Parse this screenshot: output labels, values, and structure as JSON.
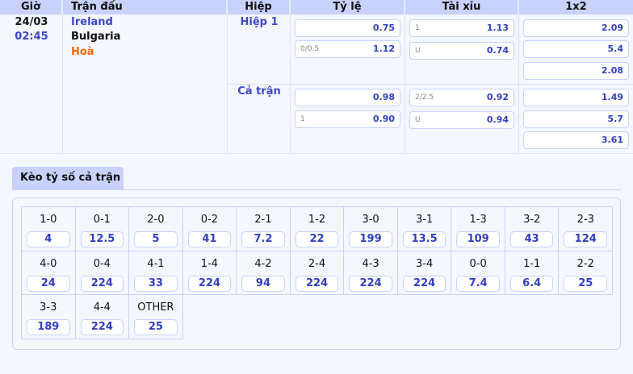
{
  "header": {
    "gio": "Giờ",
    "tran_dau": "Trận đấu",
    "hiep": "Hiệp",
    "ty_le": "Tỷ lệ",
    "tai_xiu": "Tài xỉu",
    "x12": "1x2"
  },
  "match": {
    "date": "24/03",
    "time": "02:45",
    "home": "Ireland",
    "away": "Bulgaria",
    "draw": "Hoà"
  },
  "periods": [
    {
      "name": "Hiệp 1",
      "ty_le": [
        {
          "line": "",
          "odds": "0.75"
        },
        {
          "line": "0/0.5",
          "odds": "1.12"
        }
      ],
      "tai_xiu": [
        {
          "line": "1",
          "odds": "1.13"
        },
        {
          "line": "U",
          "odds": "0.74"
        }
      ],
      "x12": [
        "2.09",
        "5.4",
        "2.08"
      ]
    },
    {
      "name": "Cả trận",
      "ty_le": [
        {
          "line": "",
          "odds": "0.98"
        },
        {
          "line": "1",
          "odds": "0.90"
        }
      ],
      "tai_xiu": [
        {
          "line": "2/2.5",
          "odds": "0.92"
        },
        {
          "line": "U",
          "odds": "0.94"
        }
      ],
      "x12": [
        "1.49",
        "5.7",
        "3.61"
      ]
    }
  ],
  "correct_score": {
    "tab_label": "Kèo tỷ số cả trận",
    "items": [
      {
        "score": "1-0",
        "odds": "4"
      },
      {
        "score": "0-1",
        "odds": "12.5"
      },
      {
        "score": "2-0",
        "odds": "5"
      },
      {
        "score": "0-2",
        "odds": "41"
      },
      {
        "score": "2-1",
        "odds": "7.2"
      },
      {
        "score": "1-2",
        "odds": "22"
      },
      {
        "score": "3-0",
        "odds": "199"
      },
      {
        "score": "3-1",
        "odds": "13.5"
      },
      {
        "score": "1-3",
        "odds": "109"
      },
      {
        "score": "3-2",
        "odds": "43"
      },
      {
        "score": "2-3",
        "odds": "124"
      },
      {
        "score": "4-0",
        "odds": "24"
      },
      {
        "score": "0-4",
        "odds": "224"
      },
      {
        "score": "4-1",
        "odds": "33"
      },
      {
        "score": "1-4",
        "odds": "224"
      },
      {
        "score": "4-2",
        "odds": "94"
      },
      {
        "score": "2-4",
        "odds": "224"
      },
      {
        "score": "4-3",
        "odds": "224"
      },
      {
        "score": "3-4",
        "odds": "224"
      },
      {
        "score": "0-0",
        "odds": "7.4"
      },
      {
        "score": "1-1",
        "odds": "6.4"
      },
      {
        "score": "2-2",
        "odds": "25"
      },
      {
        "score": "3-3",
        "odds": "189"
      },
      {
        "score": "4-4",
        "odds": "224"
      },
      {
        "score": "OTHER",
        "odds": "25"
      }
    ]
  },
  "colors": {
    "header_bg": "#c8d2fc",
    "odds": "#3040c0",
    "draw": "#f26a10",
    "home": "#3a48c8"
  }
}
